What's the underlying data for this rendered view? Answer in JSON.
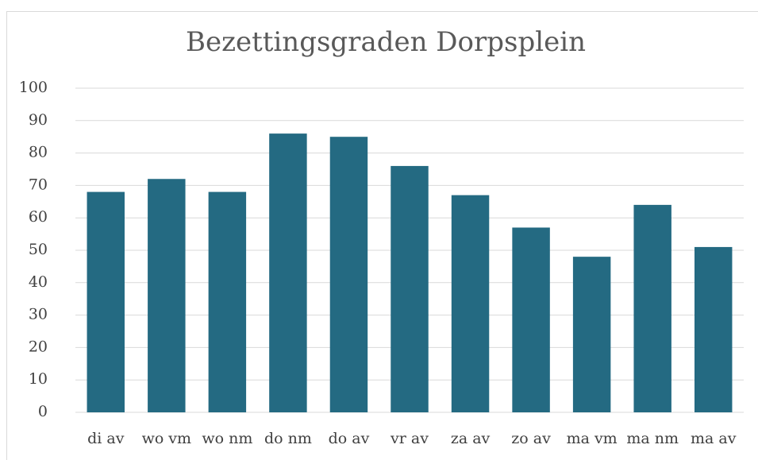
{
  "chart_data": {
    "type": "bar",
    "title": "Bezettingsgraden Dorpsplein",
    "categories": [
      "di av",
      "wo vm",
      "wo nm",
      "do nm",
      "do av",
      "vr av",
      "za av",
      "zo av",
      "ma vm",
      "ma nm",
      "ma av"
    ],
    "values": [
      68,
      72,
      68,
      86,
      85,
      76,
      67,
      57,
      48,
      64,
      51
    ],
    "color": "#246a82",
    "ylim": [
      0,
      100
    ],
    "yticks": [
      0,
      10,
      20,
      30,
      40,
      50,
      60,
      70,
      80,
      90,
      100
    ],
    "grid": true
  }
}
